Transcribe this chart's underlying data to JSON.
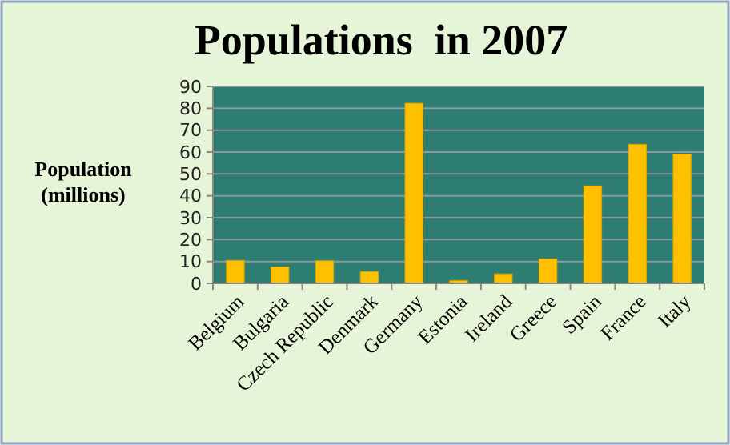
{
  "chart_data": {
    "type": "bar",
    "title": "Populations  in 2007",
    "ylabel": "Population\n(millions)",
    "categories": [
      "Belgium",
      "Bulgaria",
      "Czech Republic",
      "Denmark",
      "Germany",
      "Estonia",
      "Ireland",
      "Greece",
      "Spain",
      "France",
      "Italy"
    ],
    "values": [
      10.5,
      7.5,
      10.3,
      5.4,
      82.3,
      1.3,
      4.3,
      11.2,
      44.5,
      63.5,
      59.1
    ],
    "color": "#ffc000",
    "ylim": [
      0,
      90
    ],
    "yticks": [
      0,
      10,
      20,
      30,
      40,
      50,
      60,
      70,
      80,
      90
    ],
    "grid": "y"
  }
}
